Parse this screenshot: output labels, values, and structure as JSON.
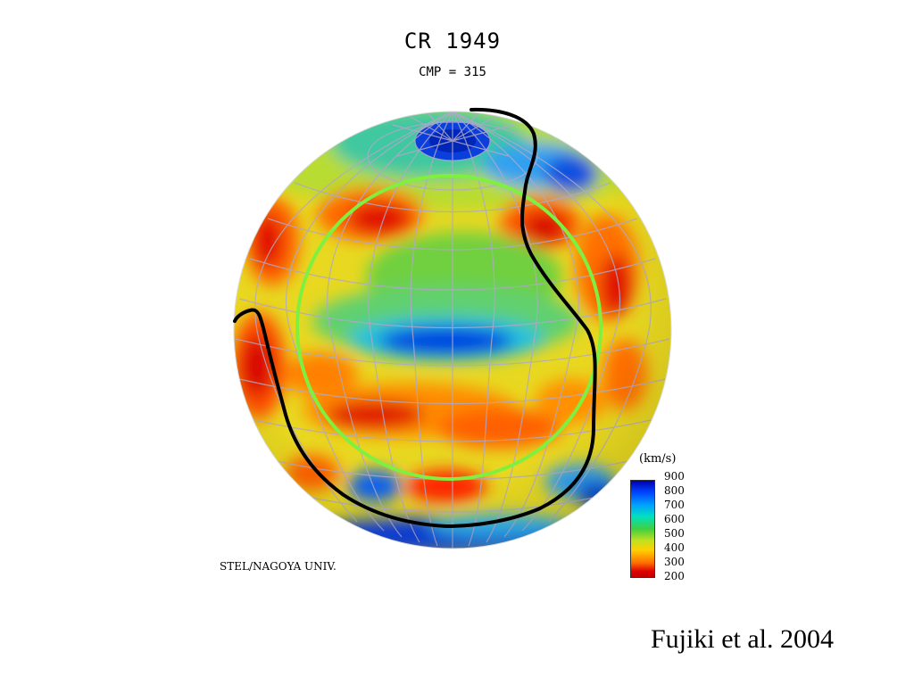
{
  "title": "CR 1949",
  "subtitle": "CMP = 315",
  "credit": "STEL/NAGOYA UNIV.",
  "citation": "Fujiki et al. 2004",
  "colorbar": {
    "unit": "(km/s)",
    "labels": [
      "900",
      "800",
      "700",
      "600",
      "500",
      "400",
      "300",
      "200"
    ]
  }
}
